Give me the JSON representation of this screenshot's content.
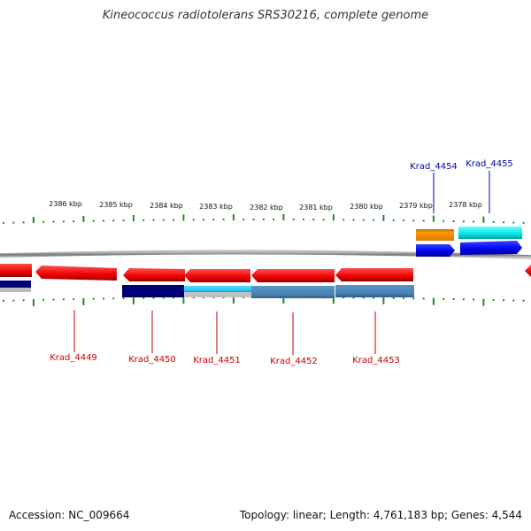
{
  "title": "Kineococcus radiotolerans SRS30216, complete genome",
  "footer": {
    "accession": "Accession: NC_009664",
    "topology": "Topology: linear; Length: 4,761,183 bp; Genes: 4,544"
  },
  "scale": {
    "labels": [
      "2386 kbp",
      "2385 kbp",
      "2384 kbp",
      "2383 kbp",
      "2382 kbp",
      "2381 kbp",
      "2380 kbp",
      "2379 kbp",
      "2378 kbp"
    ]
  },
  "colors": {
    "reverse_gene": "#ff0000",
    "forward_gene": "#0000ee",
    "cds_dark": "#000080",
    "cds_light": "#33ccff",
    "cds_steel": "#4682b4",
    "orange": "#ff9900",
    "cyan": "#00e5e5",
    "tick": "#228b22",
    "label_red": "#cc0000",
    "label_blue": "#0000aa"
  },
  "genes": [
    {
      "label": "Krad_4449",
      "strand": "reverse"
    },
    {
      "label": "Krad_4450",
      "strand": "reverse"
    },
    {
      "label": "Krad_4451",
      "strand": "reverse"
    },
    {
      "label": "Krad_4452",
      "strand": "reverse"
    },
    {
      "label": "Krad_4453",
      "strand": "reverse"
    },
    {
      "label": "Krad_4454",
      "strand": "forward"
    },
    {
      "label": "Krad_4455",
      "strand": "forward"
    }
  ]
}
